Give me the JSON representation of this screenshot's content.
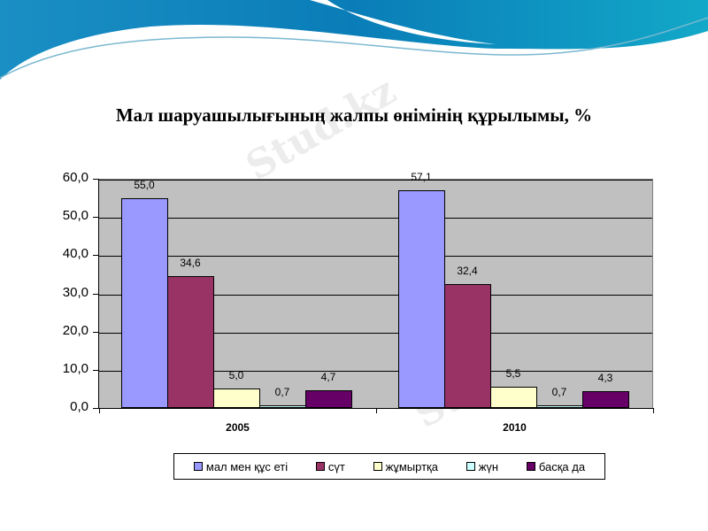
{
  "slide": {
    "title": "Мал шаруашылығының жалпы өнімінің құрылымы, %",
    "watermark_text": "Stud.kz"
  },
  "chart_data": {
    "type": "bar",
    "title": "Мал шаруашылығының жалпы өнімінің құрылымы, %",
    "xlabel": "",
    "ylabel": "",
    "ylim": [
      0,
      60
    ],
    "yticks": [
      "0,0",
      "10,0",
      "20,0",
      "30,0",
      "40,0",
      "50,0",
      "60,0"
    ],
    "grid": true,
    "legend_position": "bottom",
    "categories": [
      "2005",
      "2010"
    ],
    "series": [
      {
        "name": "мал мен құс еті",
        "color": "#9999ff",
        "values": [
          55.0,
          57.1
        ],
        "labels": [
          "55,0",
          "57,1"
        ]
      },
      {
        "name": "сүт",
        "color": "#993366",
        "values": [
          34.6,
          32.4
        ],
        "labels": [
          "34,6",
          "32,4"
        ]
      },
      {
        "name": "жұмыртқа",
        "color": "#ffffcc",
        "values": [
          5.0,
          5.5
        ],
        "labels": [
          "5,0",
          "5,5"
        ]
      },
      {
        "name": "жүн",
        "color": "#ccffff",
        "values": [
          0.7,
          0.7
        ],
        "labels": [
          "0,7",
          "0,7"
        ]
      },
      {
        "name": "басқа да",
        "color": "#660066",
        "values": [
          4.7,
          4.3
        ],
        "labels": [
          "4,7",
          "4,3"
        ]
      }
    ]
  }
}
